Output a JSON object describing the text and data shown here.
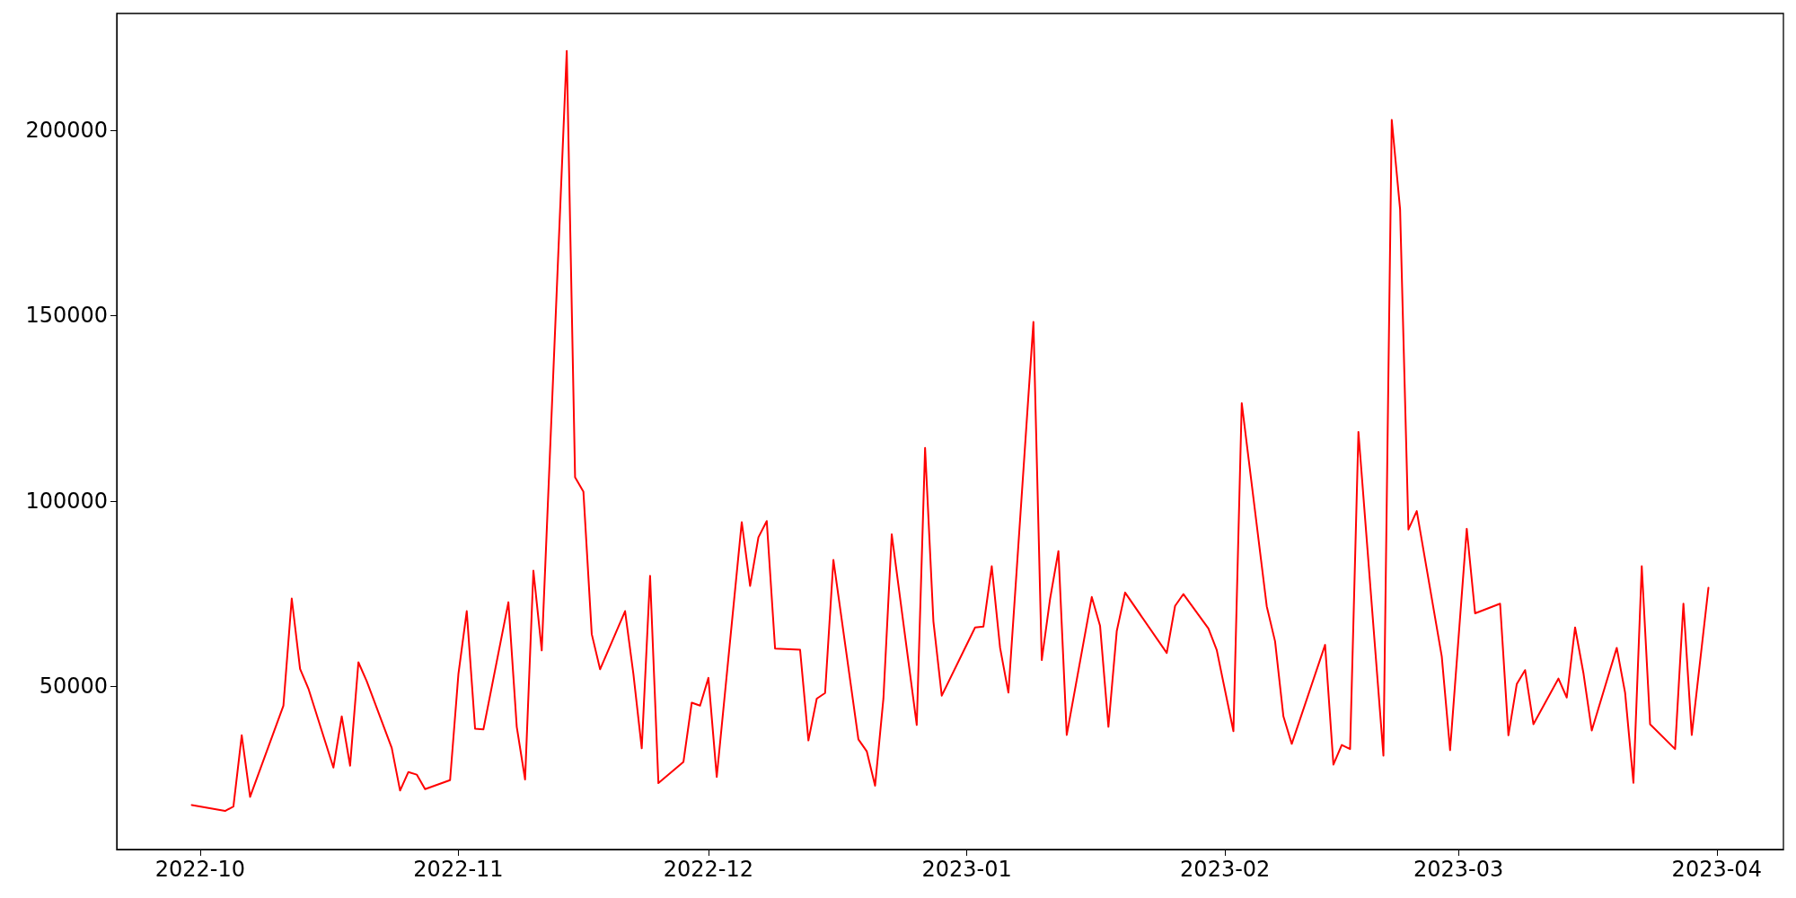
{
  "chart_data": {
    "type": "line",
    "x": [
      "2022-09-30",
      "2022-10-04",
      "2022-10-05",
      "2022-10-06",
      "2022-10-07",
      "2022-10-11",
      "2022-10-12",
      "2022-10-13",
      "2022-10-14",
      "2022-10-17",
      "2022-10-18",
      "2022-10-19",
      "2022-10-20",
      "2022-10-21",
      "2022-10-24",
      "2022-10-25",
      "2022-10-26",
      "2022-10-27",
      "2022-10-28",
      "2022-10-31",
      "2022-11-01",
      "2022-11-02",
      "2022-11-03",
      "2022-11-04",
      "2022-11-07",
      "2022-11-08",
      "2022-11-09",
      "2022-11-10",
      "2022-11-11",
      "2022-11-14",
      "2022-11-15",
      "2022-11-16",
      "2022-11-17",
      "2022-11-18",
      "2022-11-21",
      "2022-11-22",
      "2022-11-23",
      "2022-11-24",
      "2022-11-25",
      "2022-11-28",
      "2022-11-29",
      "2022-11-30",
      "2022-12-01",
      "2022-12-02",
      "2022-12-05",
      "2022-12-06",
      "2022-12-07",
      "2022-12-08",
      "2022-12-09",
      "2022-12-12",
      "2022-12-13",
      "2022-12-14",
      "2022-12-15",
      "2022-12-16",
      "2022-12-19",
      "2022-12-20",
      "2022-12-21",
      "2022-12-22",
      "2022-12-23",
      "2022-12-26",
      "2022-12-27",
      "2022-12-28",
      "2022-12-29",
      "2023-01-02",
      "2023-01-03",
      "2023-01-04",
      "2023-01-05",
      "2023-01-06",
      "2023-01-09",
      "2023-01-10",
      "2023-01-11",
      "2023-01-12",
      "2023-01-13",
      "2023-01-16",
      "2023-01-17",
      "2023-01-18",
      "2023-01-19",
      "2023-01-20",
      "2023-01-25",
      "2023-01-26",
      "2023-01-27",
      "2023-01-30",
      "2023-01-31",
      "2023-02-02",
      "2023-02-03",
      "2023-02-06",
      "2023-02-07",
      "2023-02-08",
      "2023-02-09",
      "2023-02-13",
      "2023-02-14",
      "2023-02-15",
      "2023-02-16",
      "2023-02-17",
      "2023-02-20",
      "2023-02-21",
      "2023-02-22",
      "2023-02-23",
      "2023-02-24",
      "2023-02-27",
      "2023-02-28",
      "2023-03-02",
      "2023-03-03",
      "2023-03-06",
      "2023-03-07",
      "2023-03-08",
      "2023-03-09",
      "2023-03-10",
      "2023-03-13",
      "2023-03-14",
      "2023-03-15",
      "2023-03-16",
      "2023-03-17",
      "2023-03-20",
      "2023-03-21",
      "2023-03-22",
      "2023-03-23",
      "2023-03-24",
      "2023-03-27",
      "2023-03-28",
      "2023-03-29",
      "2023-03-31"
    ],
    "series": [
      {
        "color": "#ff0000",
        "values": [
          18000,
          16400,
          17600,
          36800,
          20200,
          44800,
          73700,
          54700,
          49400,
          28100,
          41900,
          28600,
          56500,
          51400,
          33400,
          21900,
          26900,
          26200,
          22300,
          24700,
          53300,
          70300,
          38600,
          38400,
          72700,
          39100,
          24900,
          81200,
          59700,
          221400,
          106400,
          102500,
          64100,
          54600,
          70300,
          53300,
          33300,
          79800,
          23900,
          29600,
          45600,
          44800,
          52300,
          25600,
          94300,
          77100,
          90200,
          94600,
          60200,
          59900,
          35400,
          46700,
          48200,
          84100,
          35700,
          32500,
          23200,
          46700,
          91000,
          39600,
          114300,
          67500,
          47500,
          65900,
          66100,
          82400,
          60400,
          48300,
          148300,
          57100,
          73600,
          86500,
          36900,
          74100,
          66300,
          39100,
          64900,
          75300,
          59000,
          71700,
          74900,
          65600,
          59800,
          37900,
          126400,
          71600,
          62100,
          41900,
          34500,
          61200,
          28900,
          34200,
          33100,
          118600,
          31300,
          202800,
          178700,
          92300,
          97300,
          58100,
          32800,
          92500,
          69700,
          72300,
          36800,
          50600,
          54400,
          39800,
          52100,
          47000,
          65900,
          53600,
          38100,
          60400,
          48300,
          24000,
          82400,
          39800,
          33100,
          72300,
          36900,
          76600
        ]
      }
    ],
    "xlim": [
      "2022-09-21",
      "2023-04-09"
    ],
    "xticks": [
      "2022-10",
      "2022-11",
      "2022-12",
      "2023-01",
      "2023-02",
      "2023-03",
      "2023-04"
    ],
    "ylim": [
      6000,
      231500
    ],
    "yticks": [
      50000,
      100000,
      150000,
      200000
    ],
    "marker": "none",
    "line_style": "solid"
  }
}
